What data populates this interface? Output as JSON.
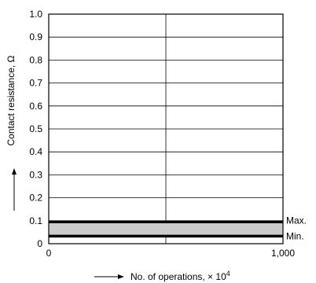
{
  "chart_data": {
    "type": "line",
    "xlabel": "No. of operations, × 10",
    "xlabel_exponent": "4",
    "ylabel": "Contact resistance, Ω",
    "xlim": [
      0,
      1000
    ],
    "ylim": [
      0,
      1.0
    ],
    "x_ticks": [
      0,
      1000
    ],
    "x_tick_labels": [
      "0",
      "1,000"
    ],
    "x_gridlines": [
      500
    ],
    "y_ticks": [
      0,
      0.1,
      0.2,
      0.3,
      0.4,
      0.5,
      0.6,
      0.7,
      0.8,
      0.9,
      1.0
    ],
    "y_tick_labels": [
      "0",
      "0.1",
      "0.2",
      "0.3",
      "0.4",
      "0.5",
      "0.6",
      "0.7",
      "0.8",
      "0.9",
      "1.0"
    ],
    "grid": true,
    "band": {
      "fill": "#cccccc",
      "from_series": "Min.",
      "to_series": "Max."
    },
    "series": [
      {
        "name": "Max.",
        "x": [
          0,
          1000
        ],
        "y": [
          0.095,
          0.095
        ]
      },
      {
        "name": "Min.",
        "x": [
          0,
          1000
        ],
        "y": [
          0.033,
          0.033
        ]
      }
    ]
  }
}
